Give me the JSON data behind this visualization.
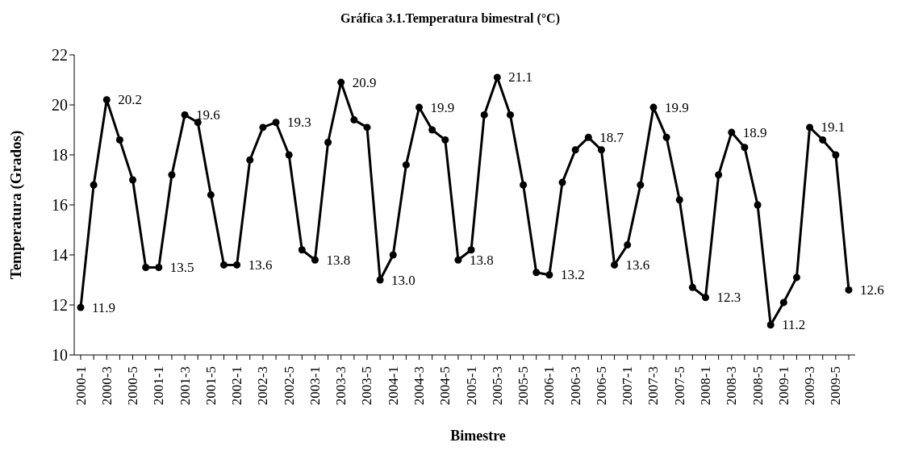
{
  "chart_data": {
    "type": "line",
    "title": "Gráfica 3.1.Temperatura bimestral (°C)",
    "xlabel": "Bimestre",
    "ylabel": "Temperatura (Grados)",
    "categories": [
      "2000-1",
      null,
      "2000-3",
      null,
      "2000-5",
      null,
      "2001-1",
      null,
      "2001-3",
      null,
      "2001-5",
      null,
      "2002-1",
      null,
      "2002-3",
      null,
      "2002-5",
      null,
      "2003-1",
      null,
      "2003-3",
      null,
      "2003-5",
      null,
      "2004-1",
      null,
      "2004-3",
      null,
      "2004-5",
      null,
      "2005-1",
      null,
      "2005-3",
      null,
      "2005-5",
      null,
      "2006-1",
      null,
      "2006-3",
      null,
      "2006-5",
      null,
      "2007-1",
      null,
      "2007-3",
      null,
      "2007-5",
      null,
      "2008-1",
      null,
      "2008-3",
      null,
      "2008-5",
      null,
      "2009-1",
      null,
      "2009-3",
      null,
      "2009-5",
      null
    ],
    "series": [
      {
        "color": "#000000",
        "values": [
          11.9,
          16.8,
          20.2,
          18.6,
          17.0,
          13.5,
          13.5,
          17.2,
          19.6,
          19.3,
          16.4,
          13.6,
          13.6,
          17.8,
          19.1,
          19.3,
          18.0,
          14.2,
          13.8,
          18.5,
          20.9,
          19.4,
          19.1,
          13.0,
          14.0,
          17.6,
          19.9,
          19.0,
          18.6,
          13.8,
          14.2,
          19.6,
          21.1,
          19.6,
          16.8,
          13.3,
          13.2,
          16.9,
          18.2,
          18.7,
          18.2,
          13.6,
          14.4,
          16.8,
          19.9,
          18.7,
          16.2,
          12.7,
          12.3,
          17.2,
          18.9,
          18.3,
          16.0,
          11.2,
          12.1,
          13.1,
          19.1,
          18.6,
          18.0,
          12.6
        ],
        "value_labels": [
          "11.9",
          null,
          "20.2",
          null,
          null,
          null,
          "13.5",
          null,
          "19.6",
          null,
          null,
          null,
          "13.6",
          null,
          null,
          "19.3",
          null,
          null,
          "13.8",
          null,
          "20.9",
          null,
          null,
          "13.0",
          null,
          null,
          "19.9",
          null,
          null,
          "13.8",
          null,
          null,
          "21.1",
          null,
          null,
          null,
          "13.2",
          null,
          null,
          "18.7",
          null,
          "13.6",
          null,
          null,
          "19.9",
          null,
          null,
          null,
          "12.3",
          null,
          "18.9",
          null,
          null,
          "11.2",
          null,
          null,
          "19.1",
          null,
          null,
          "12.6"
        ]
      }
    ],
    "ylim": [
      10,
      22
    ],
    "yticks": [
      10,
      12,
      14,
      16,
      18,
      20,
      22
    ],
    "grid": false,
    "legend": false,
    "marker": "circle",
    "line_style": "solid"
  }
}
